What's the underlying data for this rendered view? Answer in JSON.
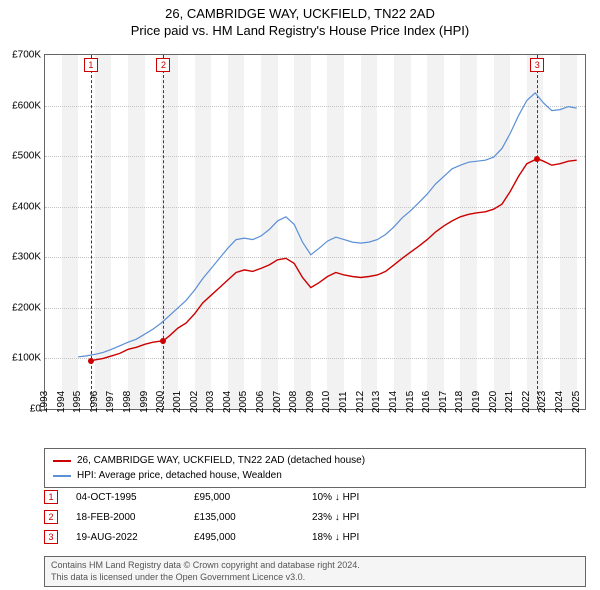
{
  "title_line1": "26, CAMBRIDGE WAY, UCKFIELD, TN22 2AD",
  "title_line2": "Price paid vs. HM Land Registry's House Price Index (HPI)",
  "chart": {
    "type": "line",
    "background_color": "#ffffff",
    "grid_color": "#c4c4c4",
    "alt_band_color": "#f2f2f2",
    "border_color": "#666666",
    "x_years": [
      1993,
      1994,
      1995,
      1996,
      1997,
      1998,
      1999,
      2000,
      2001,
      2002,
      2003,
      2004,
      2005,
      2006,
      2007,
      2008,
      2009,
      2010,
      2011,
      2012,
      2013,
      2014,
      2015,
      2016,
      2017,
      2018,
      2019,
      2020,
      2021,
      2022,
      2023,
      2024,
      2025
    ],
    "xlim": [
      1993,
      2025.5
    ],
    "ylim": [
      0,
      700
    ],
    "ytick_step": 100,
    "yticks": [
      0,
      100,
      200,
      300,
      400,
      500,
      600,
      700
    ],
    "yformat_prefix": "£",
    "yformat_suffix": "K",
    "label_fontsize": 10,
    "series": [
      {
        "name": "26, CAMBRIDGE WAY, UCKFIELD, TN22 2AD (detached house)",
        "color": "#cc0000",
        "width": 1.4,
        "points": [
          [
            1995.76,
            95
          ],
          [
            1996.0,
            97
          ],
          [
            1996.5,
            100
          ],
          [
            1997.0,
            105
          ],
          [
            1997.5,
            110
          ],
          [
            1998.0,
            118
          ],
          [
            1998.5,
            122
          ],
          [
            1999.0,
            128
          ],
          [
            1999.5,
            132
          ],
          [
            2000.13,
            135
          ],
          [
            2000.5,
            145
          ],
          [
            2001.0,
            160
          ],
          [
            2001.5,
            170
          ],
          [
            2002.0,
            188
          ],
          [
            2002.5,
            210
          ],
          [
            2003.0,
            225
          ],
          [
            2003.5,
            240
          ],
          [
            2004.0,
            255
          ],
          [
            2004.5,
            270
          ],
          [
            2005.0,
            275
          ],
          [
            2005.5,
            272
          ],
          [
            2006.0,
            278
          ],
          [
            2006.5,
            285
          ],
          [
            2007.0,
            295
          ],
          [
            2007.5,
            298
          ],
          [
            2008.0,
            288
          ],
          [
            2008.5,
            260
          ],
          [
            2009.0,
            240
          ],
          [
            2009.5,
            250
          ],
          [
            2010.0,
            262
          ],
          [
            2010.5,
            270
          ],
          [
            2011.0,
            265
          ],
          [
            2011.5,
            262
          ],
          [
            2012.0,
            260
          ],
          [
            2012.5,
            262
          ],
          [
            2013.0,
            265
          ],
          [
            2013.5,
            272
          ],
          [
            2014.0,
            285
          ],
          [
            2014.5,
            298
          ],
          [
            2015.0,
            310
          ],
          [
            2015.5,
            322
          ],
          [
            2016.0,
            335
          ],
          [
            2016.5,
            350
          ],
          [
            2017.0,
            362
          ],
          [
            2017.5,
            372
          ],
          [
            2018.0,
            380
          ],
          [
            2018.5,
            385
          ],
          [
            2019.0,
            388
          ],
          [
            2019.5,
            390
          ],
          [
            2020.0,
            395
          ],
          [
            2020.5,
            405
          ],
          [
            2021.0,
            430
          ],
          [
            2021.5,
            460
          ],
          [
            2022.0,
            485
          ],
          [
            2022.63,
            495
          ],
          [
            2023.0,
            490
          ],
          [
            2023.5,
            482
          ],
          [
            2024.0,
            485
          ],
          [
            2024.5,
            490
          ],
          [
            2025.0,
            492
          ]
        ]
      },
      {
        "name": "HPI: Average price, detached house, Wealden",
        "color": "#5b8fd6",
        "width": 1.2,
        "points": [
          [
            1995.0,
            103
          ],
          [
            1995.5,
            105
          ],
          [
            1996.0,
            108
          ],
          [
            1996.5,
            112
          ],
          [
            1997.0,
            118
          ],
          [
            1997.5,
            125
          ],
          [
            1998.0,
            132
          ],
          [
            1998.5,
            138
          ],
          [
            1999.0,
            148
          ],
          [
            1999.5,
            158
          ],
          [
            2000.0,
            170
          ],
          [
            2000.5,
            185
          ],
          [
            2001.0,
            200
          ],
          [
            2001.5,
            215
          ],
          [
            2002.0,
            235
          ],
          [
            2002.5,
            258
          ],
          [
            2003.0,
            278
          ],
          [
            2003.5,
            298
          ],
          [
            2004.0,
            318
          ],
          [
            2004.5,
            335
          ],
          [
            2005.0,
            338
          ],
          [
            2005.5,
            335
          ],
          [
            2006.0,
            342
          ],
          [
            2006.5,
            355
          ],
          [
            2007.0,
            372
          ],
          [
            2007.5,
            380
          ],
          [
            2008.0,
            365
          ],
          [
            2008.5,
            330
          ],
          [
            2009.0,
            305
          ],
          [
            2009.5,
            318
          ],
          [
            2010.0,
            332
          ],
          [
            2010.5,
            340
          ],
          [
            2011.0,
            335
          ],
          [
            2011.5,
            330
          ],
          [
            2012.0,
            328
          ],
          [
            2012.5,
            330
          ],
          [
            2013.0,
            335
          ],
          [
            2013.5,
            345
          ],
          [
            2014.0,
            360
          ],
          [
            2014.5,
            378
          ],
          [
            2015.0,
            392
          ],
          [
            2015.5,
            408
          ],
          [
            2016.0,
            425
          ],
          [
            2016.5,
            445
          ],
          [
            2017.0,
            460
          ],
          [
            2017.5,
            475
          ],
          [
            2018.0,
            482
          ],
          [
            2018.5,
            488
          ],
          [
            2019.0,
            490
          ],
          [
            2019.5,
            492
          ],
          [
            2020.0,
            498
          ],
          [
            2020.5,
            515
          ],
          [
            2021.0,
            545
          ],
          [
            2021.5,
            580
          ],
          [
            2022.0,
            610
          ],
          [
            2022.5,
            625
          ],
          [
            2023.0,
            605
          ],
          [
            2023.5,
            590
          ],
          [
            2024.0,
            592
          ],
          [
            2024.5,
            598
          ],
          [
            2025.0,
            595
          ]
        ]
      }
    ],
    "event_markers": [
      {
        "num": "1",
        "year": 1995.76,
        "value": 95
      },
      {
        "num": "2",
        "year": 2000.13,
        "value": 135
      },
      {
        "num": "3",
        "year": 2022.63,
        "value": 495
      }
    ],
    "event_dash_color": "#cc0000",
    "dot_color": "#cc0000"
  },
  "legend": {
    "items": [
      {
        "color": "#cc0000",
        "label": "26, CAMBRIDGE WAY, UCKFIELD, TN22 2AD (detached house)"
      },
      {
        "color": "#5b8fd6",
        "label": "HPI: Average price, detached house, Wealden"
      }
    ]
  },
  "events_table": {
    "rows": [
      {
        "num": "1",
        "date": "04-OCT-1995",
        "price": "£95,000",
        "delta": "10% ↓ HPI"
      },
      {
        "num": "2",
        "date": "18-FEB-2000",
        "price": "£135,000",
        "delta": "23% ↓ HPI"
      },
      {
        "num": "3",
        "date": "19-AUG-2022",
        "price": "£495,000",
        "delta": "18% ↓ HPI"
      }
    ]
  },
  "footer_line1": "Contains HM Land Registry data © Crown copyright and database right 2024.",
  "footer_line2": "This data is licensed under the Open Government Licence v3.0."
}
